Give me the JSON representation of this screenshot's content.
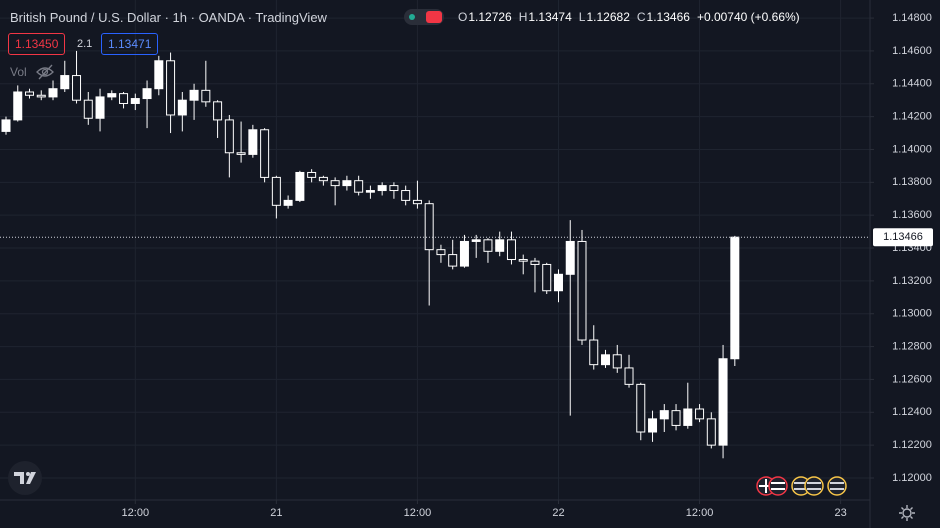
{
  "chart_data": {
    "type": "candlestick",
    "title": "British Pound / U.S. Dollar · 1h · OANDA · TradingView",
    "ohlc_labels": [
      "O",
      "H",
      "L",
      "C"
    ],
    "change": "+0.00740 (+0.66%)",
    "sell_price": "1.13450",
    "spread": "2.1",
    "buy_price": "1.13471",
    "volume_label": "Vol",
    "x": [
      0,
      1,
      2,
      3,
      4,
      5,
      6,
      7,
      8,
      9,
      10,
      11,
      12,
      13,
      14,
      15,
      16,
      17,
      18,
      19,
      20,
      21,
      22,
      23,
      24,
      25,
      26,
      27,
      28,
      29,
      30,
      31,
      32,
      33,
      34,
      35,
      36,
      37,
      38,
      39,
      40,
      41,
      42,
      43,
      44,
      45,
      46,
      47,
      48,
      49,
      50,
      51,
      52,
      53,
      54,
      55,
      56,
      57,
      58,
      59,
      60,
      61,
      62
    ],
    "open": [
      1.1411,
      1.1418,
      1.1435,
      1.1433,
      1.1432,
      1.1437,
      1.1445,
      1.143,
      1.1419,
      1.1432,
      1.1434,
      1.1428,
      1.1431,
      1.1437,
      1.1454,
      1.1421,
      1.143,
      1.1436,
      1.1429,
      1.1418,
      1.1398,
      1.1397,
      1.1412,
      1.1383,
      1.1366,
      1.1369,
      1.1386,
      1.1383,
      1.1381,
      1.1378,
      1.1381,
      1.1374,
      1.1375,
      1.1378,
      1.1375,
      1.1369,
      1.1367,
      1.1339,
      1.1336,
      1.1329,
      1.1344,
      1.1345,
      1.1338,
      1.1345,
      1.1333,
      1.1332,
      1.133,
      1.1314,
      1.1324,
      1.1344,
      1.1284,
      1.1269,
      1.1275,
      1.1267,
      1.1257,
      1.1228,
      1.1236,
      1.1241,
      1.1232,
      1.1242,
      1.1236,
      1.122,
      1.12726
    ],
    "high": [
      1.142,
      1.1439,
      1.1437,
      1.1436,
      1.1442,
      1.1454,
      1.146,
      1.1435,
      1.1437,
      1.1436,
      1.1435,
      1.1434,
      1.1442,
      1.1457,
      1.1459,
      1.1435,
      1.144,
      1.1454,
      1.143,
      1.1421,
      1.1417,
      1.1415,
      1.1413,
      1.1384,
      1.1372,
      1.1387,
      1.1388,
      1.1384,
      1.1383,
      1.1384,
      1.1384,
      1.1378,
      1.138,
      1.138,
      1.1378,
      1.1381,
      1.1369,
      1.1342,
      1.1345,
      1.1348,
      1.1348,
      1.1346,
      1.135,
      1.135,
      1.1336,
      1.1334,
      1.1331,
      1.1327,
      1.1357,
      1.1351,
      1.1293,
      1.1278,
      1.1281,
      1.1275,
      1.1258,
      1.1241,
      1.1245,
      1.1245,
      1.1258,
      1.1245,
      1.124,
      1.1281,
      1.13474
    ],
    "low": [
      1.1409,
      1.1417,
      1.1431,
      1.143,
      1.143,
      1.1435,
      1.1428,
      1.1415,
      1.1411,
      1.143,
      1.1425,
      1.1424,
      1.1413,
      1.1433,
      1.141,
      1.1411,
      1.1418,
      1.1426,
      1.1407,
      1.1383,
      1.1392,
      1.1395,
      1.138,
      1.1358,
      1.1364,
      1.1368,
      1.138,
      1.1378,
      1.1366,
      1.1375,
      1.1372,
      1.137,
      1.1372,
      1.137,
      1.1366,
      1.1364,
      1.1305,
      1.1331,
      1.1327,
      1.1328,
      1.1334,
      1.1331,
      1.1335,
      1.133,
      1.1324,
      1.1313,
      1.1312,
      1.1307,
      1.1238,
      1.1281,
      1.1266,
      1.1267,
      1.1264,
      1.1255,
      1.1223,
      1.1222,
      1.1228,
      1.1229,
      1.123,
      1.1234,
      1.1218,
      1.1212,
      1.12682
    ],
    "close": [
      1.1418,
      1.1435,
      1.1433,
      1.1432,
      1.1437,
      1.1445,
      1.143,
      1.1419,
      1.1432,
      1.1434,
      1.1428,
      1.1431,
      1.1437,
      1.1454,
      1.1421,
      1.143,
      1.1436,
      1.1429,
      1.1418,
      1.1398,
      1.1397,
      1.1412,
      1.1383,
      1.1366,
      1.1369,
      1.1386,
      1.1383,
      1.1381,
      1.1378,
      1.1381,
      1.1374,
      1.1375,
      1.1378,
      1.1375,
      1.1369,
      1.1367,
      1.1339,
      1.1336,
      1.1329,
      1.1344,
      1.1345,
      1.1338,
      1.1345,
      1.1333,
      1.1332,
      1.133,
      1.1314,
      1.1324,
      1.1344,
      1.1284,
      1.1269,
      1.1275,
      1.1267,
      1.1257,
      1.1228,
      1.1236,
      1.1241,
      1.1232,
      1.1242,
      1.1236,
      1.122,
      1.12726,
      1.13466
    ],
    "up_color": "#ffffff",
    "down_color": "#131722",
    "wick_color": "#ffffff",
    "xlim": [
      -0.51,
      73.5
    ],
    "xticks": [
      {
        "value": 11,
        "label": "12:00"
      },
      {
        "value": 23,
        "label": "21"
      },
      {
        "value": 35,
        "label": "12:00"
      },
      {
        "value": 47,
        "label": "22"
      },
      {
        "value": 59,
        "label": "12:00"
      },
      {
        "value": 71,
        "label": "23"
      }
    ],
    "ylim": [
      1.11866,
      1.1491
    ],
    "yticks": [
      {
        "value": 1.12,
        "label": "1.12000"
      },
      {
        "value": 1.122,
        "label": "1.12200"
      },
      {
        "value": 1.124,
        "label": "1.12400"
      },
      {
        "value": 1.126,
        "label": "1.12600"
      },
      {
        "value": 1.128,
        "label": "1.12800"
      },
      {
        "value": 1.13,
        "label": "1.13000"
      },
      {
        "value": 1.132,
        "label": "1.13200"
      },
      {
        "value": 1.134,
        "label": "1.13400"
      },
      {
        "value": 1.136,
        "label": "1.13600"
      },
      {
        "value": 1.138,
        "label": "1.13800"
      },
      {
        "value": 1.14,
        "label": "1.14000"
      },
      {
        "value": 1.142,
        "label": "1.14200"
      },
      {
        "value": 1.144,
        "label": "1.14400"
      },
      {
        "value": 1.146,
        "label": "1.14600"
      },
      {
        "value": 1.148,
        "label": "1.14800"
      }
    ],
    "grid": true
  }
}
